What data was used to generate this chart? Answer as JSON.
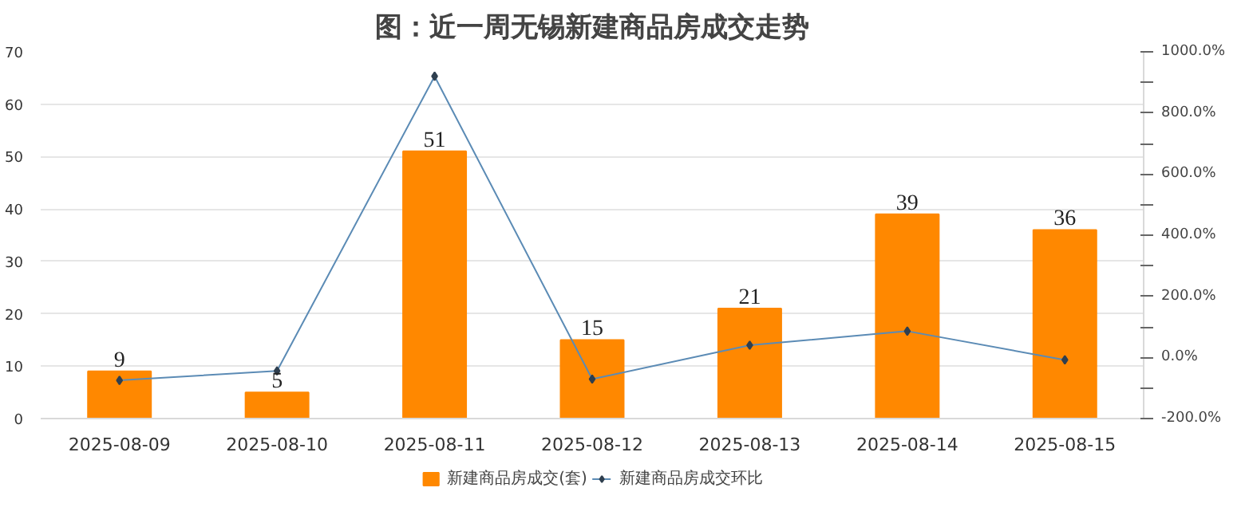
{
  "chart_data": {
    "type": "bar",
    "title": "图：近一周无锡新建商品房成交走势",
    "categories": [
      "2025-08-09",
      "2025-08-10",
      "2025-08-11",
      "2025-08-12",
      "2025-08-13",
      "2025-08-14",
      "2025-08-15"
    ],
    "series": [
      {
        "name": "新建商品房成交(套)",
        "color": "#ff8800",
        "values": [
          9,
          5,
          51,
          15,
          21,
          39,
          36
        ],
        "data_labels": true
      },
      {
        "name": "新建商品房成交环比",
        "type": "line",
        "axis": "y2",
        "color": "#5b8bb5",
        "marker": "diamond",
        "values": [
          -75,
          -44,
          920,
          -71,
          40,
          86,
          -8
        ]
      }
    ],
    "ylim": [
      0,
      70
    ],
    "yticks": [
      0,
      10,
      20,
      30,
      40,
      50,
      60,
      70
    ],
    "y2lim": [
      -200,
      1000
    ],
    "y2ticks": [
      {
        "value": -200,
        "label": "-200.0%"
      },
      {
        "value": -100,
        "label": null
      },
      {
        "value": 0,
        "label": "0.0%"
      },
      {
        "value": 100,
        "label": null
      },
      {
        "value": 200,
        "label": "200.0%"
      },
      {
        "value": 300,
        "label": null
      },
      {
        "value": 400,
        "label": "400.0%"
      },
      {
        "value": 500,
        "label": null
      },
      {
        "value": 600,
        "label": "600.0%"
      },
      {
        "value": 700,
        "label": null
      },
      {
        "value": 800,
        "label": "800.0%"
      },
      {
        "value": 900,
        "label": null
      },
      {
        "value": 1000,
        "label": "1000.0%"
      }
    ],
    "grid": "y",
    "legend": "bottom"
  }
}
